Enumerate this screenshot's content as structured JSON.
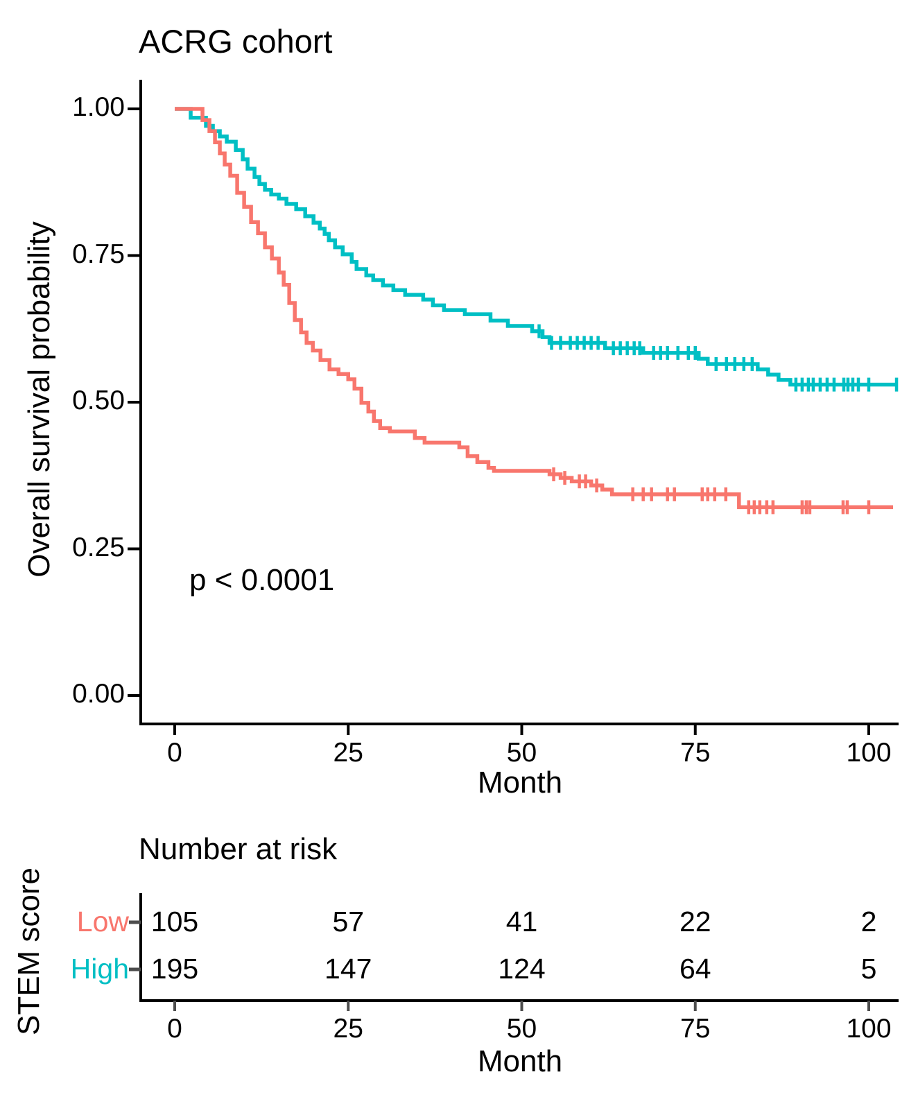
{
  "title": "ACRG cohort",
  "p_value": "p < 0.0001",
  "colors": {
    "low": "#F8766D",
    "high": "#00BFC4",
    "axis": "#000000",
    "risk_tick": "#4d4d4d"
  },
  "axes": {
    "y_label": "Overall survival probability",
    "x_label": "Month",
    "y_ticks": [
      {
        "label": "1.00",
        "value": 1.0
      },
      {
        "label": "0.75",
        "value": 0.75
      },
      {
        "label": "0.50",
        "value": 0.5
      },
      {
        "label": "0.25",
        "value": 0.25
      },
      {
        "label": "0.00",
        "value": 0.0
      }
    ],
    "x_ticks": [
      {
        "label": "0",
        "value": 0
      },
      {
        "label": "25",
        "value": 25
      },
      {
        "label": "50",
        "value": 50
      },
      {
        "label": "75",
        "value": 75
      },
      {
        "label": "100",
        "value": 100
      }
    ]
  },
  "risk_table": {
    "title": "Number at risk",
    "group_label": "STEM score",
    "x_label": "Month",
    "rows": [
      {
        "label": "Low",
        "color": "#F8766D",
        "values": [
          "105",
          "57",
          "41",
          "22",
          "2"
        ]
      },
      {
        "label": "High",
        "color": "#00BFC4",
        "values": [
          "195",
          "147",
          "124",
          "64",
          "5"
        ]
      }
    ]
  },
  "chart_data": {
    "type": "line",
    "subtype": "kaplan-meier-step",
    "title": "ACRG cohort",
    "xlabel": "Month",
    "ylabel": "Overall survival probability",
    "xlim": [
      0,
      105
    ],
    "ylim": [
      0,
      1
    ],
    "grid": false,
    "annotation": "p < 0.0001",
    "legend": "none (groups labeled in risk table: STEM score Low/High)",
    "series": [
      {
        "name": "High",
        "color": "#00BFC4",
        "n_start": 195,
        "steps": [
          [
            0,
            1.0
          ],
          [
            2.3,
            0.985
          ],
          [
            4.5,
            0.971
          ],
          [
            5.5,
            0.962
          ],
          [
            6.5,
            0.953
          ],
          [
            7.5,
            0.944
          ],
          [
            8.8,
            0.93
          ],
          [
            9.8,
            0.914
          ],
          [
            10.5,
            0.898
          ],
          [
            11.5,
            0.884
          ],
          [
            12.2,
            0.872
          ],
          [
            13,
            0.862
          ],
          [
            13.9,
            0.854
          ],
          [
            15,
            0.847
          ],
          [
            16.1,
            0.838
          ],
          [
            17.5,
            0.829
          ],
          [
            18.8,
            0.817
          ],
          [
            20,
            0.806
          ],
          [
            20.9,
            0.796
          ],
          [
            21.6,
            0.787
          ],
          [
            22.2,
            0.776
          ],
          [
            23.1,
            0.764
          ],
          [
            24.2,
            0.752
          ],
          [
            25.5,
            0.739
          ],
          [
            26.2,
            0.727
          ],
          [
            27.6,
            0.716
          ],
          [
            28.6,
            0.708
          ],
          [
            30,
            0.699
          ],
          [
            31.5,
            0.691
          ],
          [
            33.2,
            0.683
          ],
          [
            35.8,
            0.675
          ],
          [
            37.2,
            0.665
          ],
          [
            38.8,
            0.657
          ],
          [
            41.8,
            0.65
          ],
          [
            45.5,
            0.639
          ],
          [
            48,
            0.63
          ],
          [
            51.5,
            0.621
          ],
          [
            53,
            0.611
          ],
          [
            54,
            0.601
          ],
          [
            62,
            0.592
          ],
          [
            67.5,
            0.584
          ],
          [
            75.5,
            0.574
          ],
          [
            76.8,
            0.565
          ],
          [
            84,
            0.556
          ],
          [
            85.5,
            0.547
          ],
          [
            87,
            0.538
          ],
          [
            88.7,
            0.53
          ],
          [
            104,
            0.53
          ]
        ],
        "censors": [
          [
            52.5,
            0.621
          ],
          [
            54.3,
            0.601
          ],
          [
            55.6,
            0.601
          ],
          [
            57,
            0.601
          ],
          [
            58,
            0.601
          ],
          [
            59,
            0.601
          ],
          [
            60,
            0.601
          ],
          [
            61,
            0.601
          ],
          [
            63.2,
            0.592
          ],
          [
            64.2,
            0.592
          ],
          [
            65.2,
            0.592
          ],
          [
            66.2,
            0.592
          ],
          [
            67,
            0.592
          ],
          [
            69,
            0.584
          ],
          [
            70,
            0.584
          ],
          [
            71,
            0.584
          ],
          [
            72.5,
            0.584
          ],
          [
            74,
            0.584
          ],
          [
            75,
            0.584
          ],
          [
            78,
            0.565
          ],
          [
            79.5,
            0.565
          ],
          [
            80.7,
            0.565
          ],
          [
            82,
            0.565
          ],
          [
            83.2,
            0.565
          ],
          [
            89.5,
            0.53
          ],
          [
            90.4,
            0.53
          ],
          [
            91.3,
            0.53
          ],
          [
            92,
            0.53
          ],
          [
            93,
            0.53
          ],
          [
            94,
            0.53
          ],
          [
            95,
            0.53
          ],
          [
            96.4,
            0.53
          ],
          [
            97,
            0.53
          ],
          [
            97.7,
            0.53
          ],
          [
            98.5,
            0.53
          ],
          [
            100,
            0.53
          ],
          [
            104,
            0.53
          ]
        ]
      },
      {
        "name": "Low",
        "color": "#F8766D",
        "n_start": 105,
        "steps": [
          [
            0,
            1.0
          ],
          [
            4,
            0.981
          ],
          [
            5,
            0.962
          ],
          [
            5.8,
            0.943
          ],
          [
            6.5,
            0.924
          ],
          [
            7.2,
            0.905
          ],
          [
            8,
            0.886
          ],
          [
            9,
            0.857
          ],
          [
            10,
            0.833
          ],
          [
            11,
            0.807
          ],
          [
            12,
            0.788
          ],
          [
            13,
            0.764
          ],
          [
            14,
            0.745
          ],
          [
            15,
            0.721
          ],
          [
            15.7,
            0.7
          ],
          [
            16.5,
            0.669
          ],
          [
            17.3,
            0.64
          ],
          [
            18.2,
            0.619
          ],
          [
            19,
            0.601
          ],
          [
            19.9,
            0.588
          ],
          [
            21,
            0.572
          ],
          [
            22.3,
            0.556
          ],
          [
            23.6,
            0.548
          ],
          [
            25,
            0.539
          ],
          [
            25.9,
            0.523
          ],
          [
            26.9,
            0.499
          ],
          [
            27.9,
            0.484
          ],
          [
            28.7,
            0.468
          ],
          [
            29.6,
            0.456
          ],
          [
            31,
            0.45
          ],
          [
            34.6,
            0.439
          ],
          [
            36,
            0.431
          ],
          [
            41,
            0.423
          ],
          [
            42.2,
            0.408
          ],
          [
            43.6,
            0.398
          ],
          [
            45.2,
            0.388
          ],
          [
            46,
            0.383
          ],
          [
            54,
            0.377
          ],
          [
            55.6,
            0.371
          ],
          [
            57.2,
            0.365
          ],
          [
            60,
            0.358
          ],
          [
            61.6,
            0.351
          ],
          [
            63,
            0.343
          ],
          [
            81.3,
            0.321
          ],
          [
            103.5,
            0.321
          ]
        ],
        "censors": [
          [
            54.6,
            0.377
          ],
          [
            56.2,
            0.371
          ],
          [
            58.3,
            0.365
          ],
          [
            59.2,
            0.365
          ],
          [
            60.8,
            0.358
          ],
          [
            66,
            0.343
          ],
          [
            67.5,
            0.343
          ],
          [
            68.7,
            0.343
          ],
          [
            71,
            0.343
          ],
          [
            72,
            0.343
          ],
          [
            76,
            0.343
          ],
          [
            76.8,
            0.343
          ],
          [
            77.8,
            0.343
          ],
          [
            79.4,
            0.343
          ],
          [
            82.7,
            0.321
          ],
          [
            83.5,
            0.321
          ],
          [
            84.3,
            0.321
          ],
          [
            85.3,
            0.321
          ],
          [
            86.2,
            0.321
          ],
          [
            90.4,
            0.321
          ],
          [
            91,
            0.321
          ],
          [
            91.5,
            0.321
          ],
          [
            96.3,
            0.321
          ],
          [
            96.9,
            0.321
          ],
          [
            100,
            0.321
          ]
        ]
      }
    ],
    "number_at_risk": {
      "times": [
        0,
        25,
        50,
        75,
        100
      ],
      "Low": [
        105,
        57,
        41,
        22,
        2
      ],
      "High": [
        195,
        147,
        124,
        64,
        5
      ]
    }
  }
}
